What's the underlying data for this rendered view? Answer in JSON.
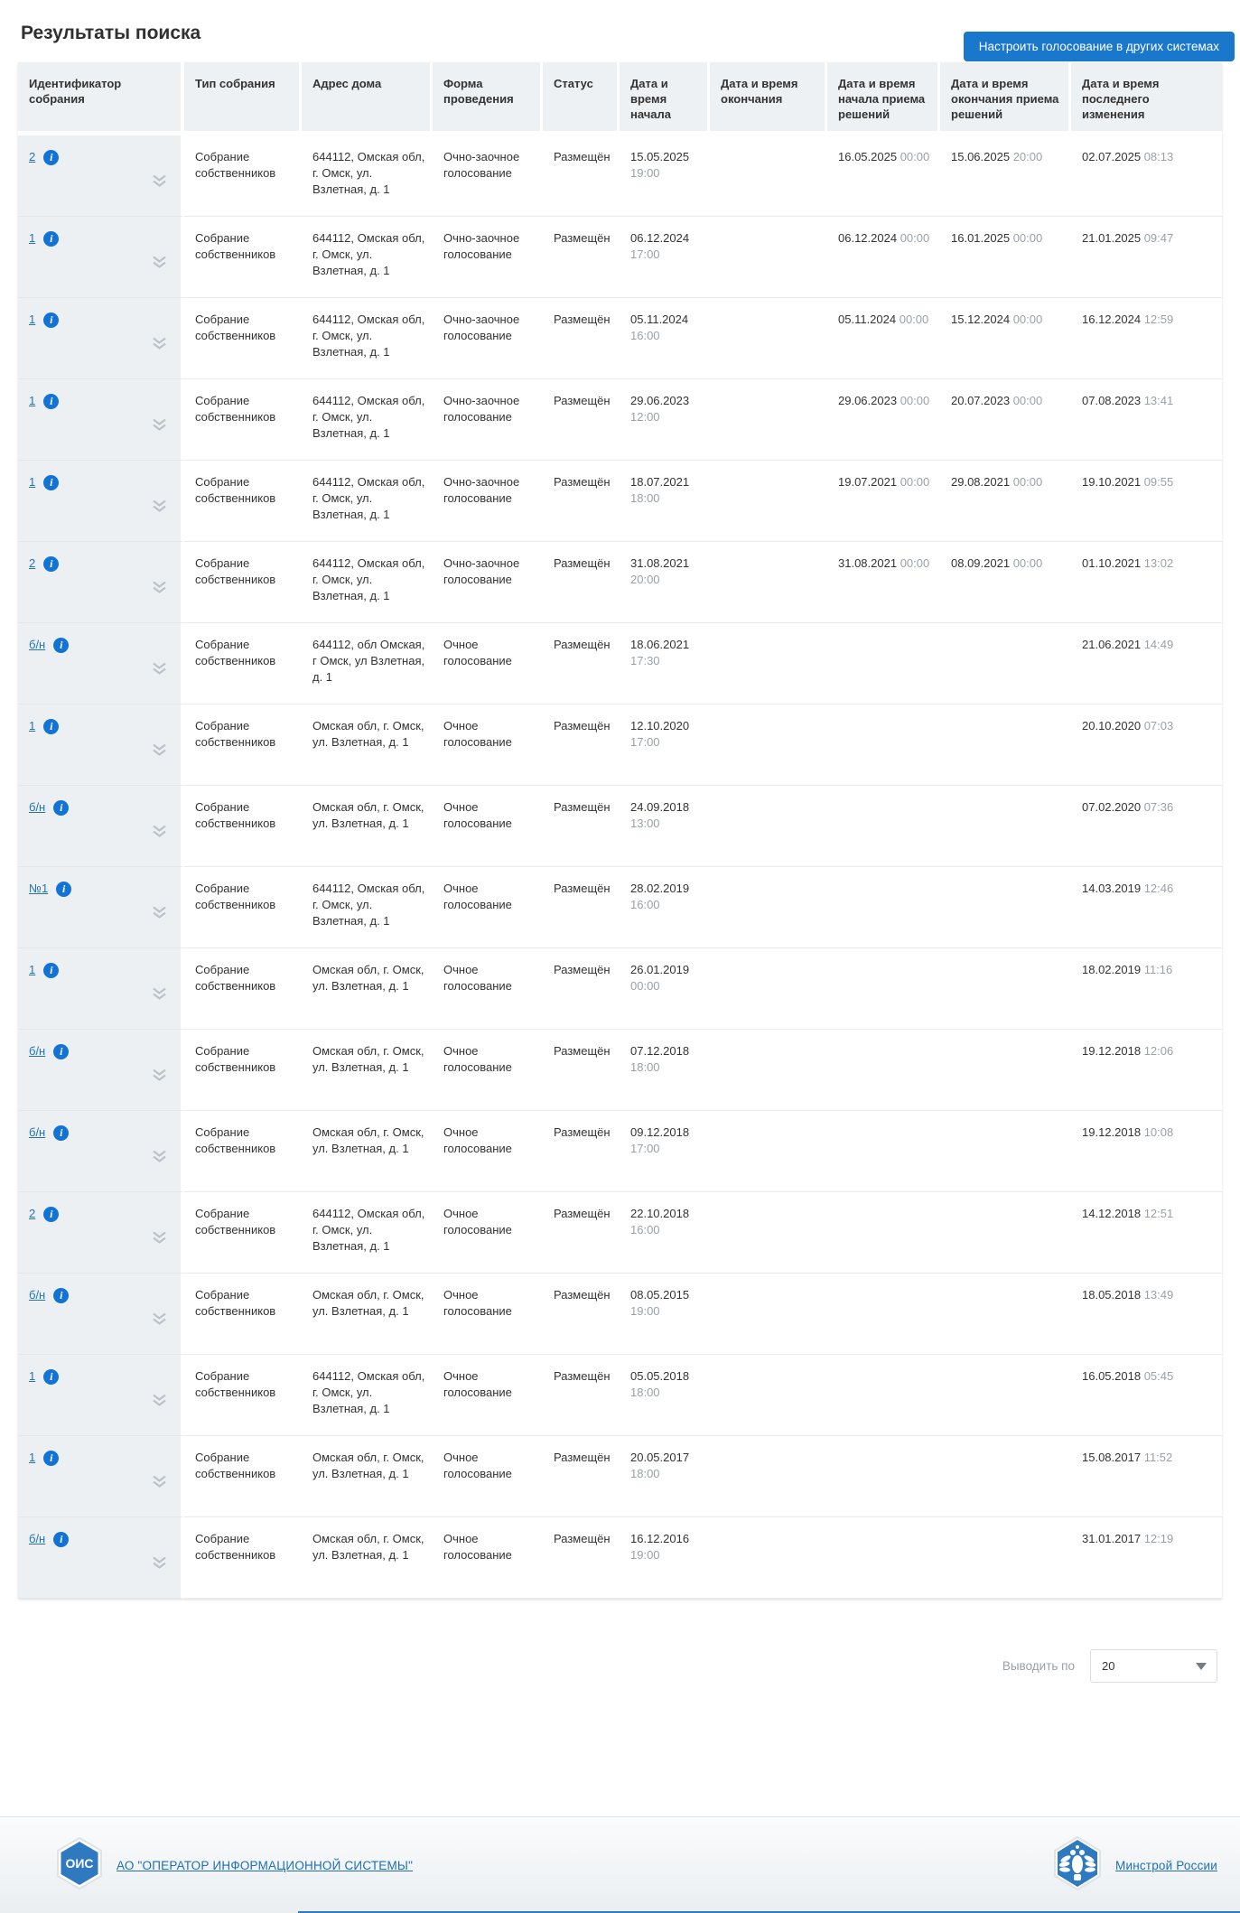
{
  "page": {
    "title": "Результаты поиска"
  },
  "actions": {
    "configure_voting_button": "Настроить голосование в других системах"
  },
  "table": {
    "columns": [
      "Идентификатор собрания",
      "Тип собрания",
      "Адрес дома",
      "Форма проведения",
      "Статус",
      "Дата и время начала",
      "Дата и время окончания",
      "Дата и время начала приема решений",
      "Дата и время окончания приема решений",
      "Дата и время последнего изменения"
    ],
    "rows": [
      {
        "id": "2",
        "type": "Собрание собственников",
        "address": "644112, Омская обл, г. Омск, ул. Взлетная, д. 1",
        "form": "Очно-заочное голосование",
        "status": "Размещён",
        "start_date": "15.05.2025",
        "start_time": "19:00",
        "end_date": "",
        "end_time": "",
        "dec_start_date": "16.05.2025",
        "dec_start_time": "00:00",
        "dec_end_date": "15.06.2025",
        "dec_end_time": "20:00",
        "changed_date": "02.07.2025",
        "changed_time": "08:13"
      },
      {
        "id": "1",
        "type": "Собрание собственников",
        "address": "644112, Омская обл, г. Омск, ул. Взлетная, д. 1",
        "form": "Очно-заочное голосование",
        "status": "Размещён",
        "start_date": "06.12.2024",
        "start_time": "17:00",
        "end_date": "",
        "end_time": "",
        "dec_start_date": "06.12.2024",
        "dec_start_time": "00:00",
        "dec_end_date": "16.01.2025",
        "dec_end_time": "00:00",
        "changed_date": "21.01.2025",
        "changed_time": "09:47"
      },
      {
        "id": "1",
        "type": "Собрание собственников",
        "address": "644112, Омская обл, г. Омск, ул. Взлетная, д. 1",
        "form": "Очно-заочное голосование",
        "status": "Размещён",
        "start_date": "05.11.2024",
        "start_time": "16:00",
        "end_date": "",
        "end_time": "",
        "dec_start_date": "05.11.2024",
        "dec_start_time": "00:00",
        "dec_end_date": "15.12.2024",
        "dec_end_time": "00:00",
        "changed_date": "16.12.2024",
        "changed_time": "12:59"
      },
      {
        "id": "1",
        "type": "Собрание собственников",
        "address": "644112, Омская обл, г. Омск, ул. Взлетная, д. 1",
        "form": "Очно-заочное голосование",
        "status": "Размещён",
        "start_date": "29.06.2023",
        "start_time": "12:00",
        "end_date": "",
        "end_time": "",
        "dec_start_date": "29.06.2023",
        "dec_start_time": "00:00",
        "dec_end_date": "20.07.2023",
        "dec_end_time": "00:00",
        "changed_date": "07.08.2023",
        "changed_time": "13:41"
      },
      {
        "id": "1",
        "type": "Собрание собственников",
        "address": "644112, Омская обл, г. Омск, ул. Взлетная, д. 1",
        "form": "Очно-заочное голосование",
        "status": "Размещён",
        "start_date": "18.07.2021",
        "start_time": "18:00",
        "end_date": "",
        "end_time": "",
        "dec_start_date": "19.07.2021",
        "dec_start_time": "00:00",
        "dec_end_date": "29.08.2021",
        "dec_end_time": "00:00",
        "changed_date": "19.10.2021",
        "changed_time": "09:55"
      },
      {
        "id": "2",
        "type": "Собрание собственников",
        "address": "644112, Омская обл, г. Омск, ул. Взлетная, д. 1",
        "form": "Очно-заочное голосование",
        "status": "Размещён",
        "start_date": "31.08.2021",
        "start_time": "20:00",
        "end_date": "",
        "end_time": "",
        "dec_start_date": "31.08.2021",
        "dec_start_time": "00:00",
        "dec_end_date": "08.09.2021",
        "dec_end_time": "00:00",
        "changed_date": "01.10.2021",
        "changed_time": "13:02"
      },
      {
        "id": "б/н",
        "type": "Собрание собственников",
        "address": "644112, обл Омская, г Омск, ул Взлетная, д. 1",
        "form": "Очное голосование",
        "status": "Размещён",
        "start_date": "18.06.2021",
        "start_time": "17:30",
        "end_date": "",
        "end_time": "",
        "dec_start_date": "",
        "dec_start_time": "",
        "dec_end_date": "",
        "dec_end_time": "",
        "changed_date": "21.06.2021",
        "changed_time": "14:49"
      },
      {
        "id": "1",
        "type": "Собрание собственников",
        "address": "Омская обл, г. Омск, ул. Взлетная, д. 1",
        "form": "Очное голосование",
        "status": "Размещён",
        "start_date": "12.10.2020",
        "start_time": "17:00",
        "end_date": "",
        "end_time": "",
        "dec_start_date": "",
        "dec_start_time": "",
        "dec_end_date": "",
        "dec_end_time": "",
        "changed_date": "20.10.2020",
        "changed_time": "07:03"
      },
      {
        "id": "б/н",
        "type": "Собрание собственников",
        "address": "Омская обл, г. Омск, ул. Взлетная, д. 1",
        "form": "Очное голосование",
        "status": "Размещён",
        "start_date": "24.09.2018",
        "start_time": "13:00",
        "end_date": "",
        "end_time": "",
        "dec_start_date": "",
        "dec_start_time": "",
        "dec_end_date": "",
        "dec_end_time": "",
        "changed_date": "07.02.2020",
        "changed_time": "07:36"
      },
      {
        "id": "№1",
        "type": "Собрание собственников",
        "address": "644112, Омская обл, г. Омск, ул. Взлетная, д. 1",
        "form": "Очное голосование",
        "status": "Размещён",
        "start_date": "28.02.2019",
        "start_time": "16:00",
        "end_date": "",
        "end_time": "",
        "dec_start_date": "",
        "dec_start_time": "",
        "dec_end_date": "",
        "dec_end_time": "",
        "changed_date": "14.03.2019",
        "changed_time": "12:46"
      },
      {
        "id": "1",
        "type": "Собрание собственников",
        "address": "Омская обл, г. Омск, ул. Взлетная, д. 1",
        "form": "Очное голосование",
        "status": "Размещён",
        "start_date": "26.01.2019",
        "start_time": "00:00",
        "end_date": "",
        "end_time": "",
        "dec_start_date": "",
        "dec_start_time": "",
        "dec_end_date": "",
        "dec_end_time": "",
        "changed_date": "18.02.2019",
        "changed_time": "11:16"
      },
      {
        "id": "б/н",
        "type": "Собрание собственников",
        "address": "Омская обл, г. Омск, ул. Взлетная, д. 1",
        "form": "Очное голосование",
        "status": "Размещён",
        "start_date": "07.12.2018",
        "start_time": "18:00",
        "end_date": "",
        "end_time": "",
        "dec_start_date": "",
        "dec_start_time": "",
        "dec_end_date": "",
        "dec_end_time": "",
        "changed_date": "19.12.2018",
        "changed_time": "12:06"
      },
      {
        "id": "б/н",
        "type": "Собрание собственников",
        "address": "Омская обл, г. Омск, ул. Взлетная, д. 1",
        "form": "Очное голосование",
        "status": "Размещён",
        "start_date": "09.12.2018",
        "start_time": "17:00",
        "end_date": "",
        "end_time": "",
        "dec_start_date": "",
        "dec_start_time": "",
        "dec_end_date": "",
        "dec_end_time": "",
        "changed_date": "19.12.2018",
        "changed_time": "10:08"
      },
      {
        "id": "2",
        "type": "Собрание собственников",
        "address": "644112, Омская обл, г. Омск, ул. Взлетная, д. 1",
        "form": "Очное голосование",
        "status": "Размещён",
        "start_date": "22.10.2018",
        "start_time": "16:00",
        "end_date": "",
        "end_time": "",
        "dec_start_date": "",
        "dec_start_time": "",
        "dec_end_date": "",
        "dec_end_time": "",
        "changed_date": "14.12.2018",
        "changed_time": "12:51"
      },
      {
        "id": "б/н",
        "type": "Собрание собственников",
        "address": "Омская обл, г. Омск, ул. Взлетная, д. 1",
        "form": "Очное голосование",
        "status": "Размещён",
        "start_date": "08.05.2015",
        "start_time": "19:00",
        "end_date": "",
        "end_time": "",
        "dec_start_date": "",
        "dec_start_time": "",
        "dec_end_date": "",
        "dec_end_time": "",
        "changed_date": "18.05.2018",
        "changed_time": "13:49"
      },
      {
        "id": "1",
        "type": "Собрание собственников",
        "address": "644112, Омская обл, г. Омск, ул. Взлетная, д. 1",
        "form": "Очное голосование",
        "status": "Размещён",
        "start_date": "05.05.2018",
        "start_time": "18:00",
        "end_date": "",
        "end_time": "",
        "dec_start_date": "",
        "dec_start_time": "",
        "dec_end_date": "",
        "dec_end_time": "",
        "changed_date": "16.05.2018",
        "changed_time": "05:45"
      },
      {
        "id": "1",
        "type": "Собрание собственников",
        "address": "Омская обл, г. Омск, ул. Взлетная, д. 1",
        "form": "Очное голосование",
        "status": "Размещён",
        "start_date": "20.05.2017",
        "start_time": "18:00",
        "end_date": "",
        "end_time": "",
        "dec_start_date": "",
        "dec_start_time": "",
        "dec_end_date": "",
        "dec_end_time": "",
        "changed_date": "15.08.2017",
        "changed_time": "11:52"
      },
      {
        "id": "б/н",
        "type": "Собрание собственников",
        "address": "Омская обл, г. Омск, ул. Взлетная, д. 1",
        "form": "Очное голосование",
        "status": "Размещён",
        "start_date": "16.12.2016",
        "start_time": "19:00",
        "end_date": "",
        "end_time": "",
        "dec_start_date": "",
        "dec_start_time": "",
        "dec_end_date": "",
        "dec_end_time": "",
        "changed_date": "31.01.2017",
        "changed_time": "12:19"
      }
    ]
  },
  "pagination": {
    "label": "Выводить по",
    "page_size": "20"
  },
  "footer": {
    "ois_badge": "ОИС",
    "operator_link": "АО \"ОПЕРАТОР ИНФОРМАЦИОННОЙ СИСТЕМЫ\"",
    "ministry_link": "Минстрой России"
  },
  "colors": {
    "accent_blue": "#1a78cc",
    "link_blue": "#2173b6",
    "badge_blue": "#2e79c0",
    "header_bg": "#eef1f4",
    "id_cell_bg": "#edf0f3"
  }
}
